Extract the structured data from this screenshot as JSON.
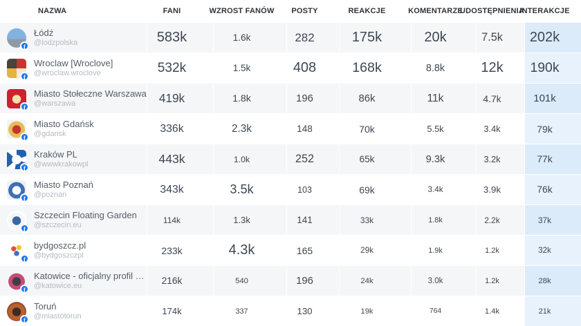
{
  "meta": {
    "accent_color": "#1877f2",
    "row_alt_color": "#f5f6f8",
    "highlight_col_color_odd": "#dcebfa",
    "highlight_col_color_even": "#e7f2fd",
    "number_text_color": "#3d4752"
  },
  "table": {
    "columns": [
      {
        "key": "nazwa",
        "label": "NAZWA"
      },
      {
        "key": "fani",
        "label": "FANI"
      },
      {
        "key": "wzrost_fanow",
        "label": "WZROST FANÓW"
      },
      {
        "key": "posty",
        "label": "POSTY"
      },
      {
        "key": "reakcje",
        "label": "REAKCJE"
      },
      {
        "key": "komentarze",
        "label": "KOMENTARZE"
      },
      {
        "key": "udostepnienia",
        "label": "UDOSTĘPNIENIA"
      },
      {
        "key": "interakcje",
        "label": "INTERAKCJE",
        "highlighted": true
      }
    ],
    "rows": [
      {
        "name": "Łódź",
        "handle": "@lodzpolska",
        "avatar": {
          "icon": "lodz-page-avatar",
          "style": "photo",
          "shape": "circle",
          "colors": [
            "#82b2e0",
            "#8f9aa3"
          ]
        },
        "cells": [
          {
            "text": "583k",
            "value": 583000
          },
          {
            "text": "1.6k",
            "value": 1600
          },
          {
            "text": "282",
            "value": 282
          },
          {
            "text": "175k",
            "value": 175000
          },
          {
            "text": "20k",
            "value": 20000
          },
          {
            "text": "7.5k",
            "value": 7500
          },
          {
            "text": "202k",
            "value": 202000
          }
        ]
      },
      {
        "name": "Wroclaw [Wroclove]",
        "handle": "@wroclaw.wroclove",
        "avatar": {
          "icon": "wroclaw-page-avatar",
          "style": "quarters",
          "shape": "square",
          "colors": [
            "#c8342e",
            "#f3ead8",
            "#e3b53b",
            "#4a423c"
          ]
        },
        "cells": [
          {
            "text": "532k",
            "value": 532000
          },
          {
            "text": "1.5k",
            "value": 1500
          },
          {
            "text": "408",
            "value": 408
          },
          {
            "text": "168k",
            "value": 168000
          },
          {
            "text": "8.8k",
            "value": 8800
          },
          {
            "text": "12k",
            "value": 12000
          },
          {
            "text": "190k",
            "value": 190000
          }
        ]
      },
      {
        "name": "Miasto Stołeczne Warszawa",
        "handle": "@warszawa",
        "avatar": {
          "icon": "warszawa-page-avatar",
          "style": "emblem",
          "shape": "square",
          "colors": [
            "#f4dfae",
            "#cd2230",
            "#cd2230"
          ]
        },
        "cells": [
          {
            "text": "419k",
            "value": 419000
          },
          {
            "text": "1.8k",
            "value": 1800
          },
          {
            "text": "196",
            "value": 196
          },
          {
            "text": "86k",
            "value": 86000
          },
          {
            "text": "11k",
            "value": 11000
          },
          {
            "text": "4.7k",
            "value": 4700
          },
          {
            "text": "101k",
            "value": 101000
          }
        ]
      },
      {
        "name": "Miasto Gdańsk",
        "handle": "@gdansk",
        "avatar": {
          "icon": "gdansk-page-avatar",
          "style": "emblem",
          "shape": "square",
          "colors": [
            "#c73430",
            "#e4bd55",
            "#f2f3f5"
          ]
        },
        "cells": [
          {
            "text": "336k",
            "value": 336000
          },
          {
            "text": "2.3k",
            "value": 2300
          },
          {
            "text": "148",
            "value": 148
          },
          {
            "text": "70k",
            "value": 70000
          },
          {
            "text": "5.5k",
            "value": 5500
          },
          {
            "text": "3.4k",
            "value": 3400
          },
          {
            "text": "79k",
            "value": 79000
          }
        ]
      },
      {
        "name": "Kraków PL",
        "handle": "@wwwkrakowpl",
        "avatar": {
          "icon": "krakow-page-avatar",
          "style": "ring",
          "shape": "square",
          "colors": [
            "#2261ad"
          ]
        },
        "cells": [
          {
            "text": "443k",
            "value": 443000
          },
          {
            "text": "1.0k",
            "value": 1000
          },
          {
            "text": "252",
            "value": 252
          },
          {
            "text": "65k",
            "value": 65000
          },
          {
            "text": "9.3k",
            "value": 9300
          },
          {
            "text": "3.2k",
            "value": 3200
          },
          {
            "text": "77k",
            "value": 77000
          }
        ]
      },
      {
        "name": "Miasto Poznań",
        "handle": "@poznan",
        "avatar": {
          "icon": "poznan-page-avatar",
          "style": "emblem",
          "shape": "square",
          "colors": [
            "#ffffff",
            "#3f6fb5",
            "#eff1f3"
          ]
        },
        "cells": [
          {
            "text": "343k",
            "value": 343000
          },
          {
            "text": "3.5k",
            "value": 3500
          },
          {
            "text": "103",
            "value": 103
          },
          {
            "text": "69k",
            "value": 69000
          },
          {
            "text": "3.4k",
            "value": 3400
          },
          {
            "text": "3.9k",
            "value": 3900
          },
          {
            "text": "76k",
            "value": 76000
          }
        ]
      },
      {
        "name": "Szczecin Floating Garden",
        "handle": "@szczecin.eu",
        "avatar": {
          "icon": "szczecin-page-avatar",
          "style": "emblem",
          "shape": "circle",
          "colors": [
            "#3c67a5",
            "#f4f6f8",
            "#ffffff"
          ]
        },
        "cells": [
          {
            "text": "114k",
            "value": 114000
          },
          {
            "text": "1.3k",
            "value": 1300
          },
          {
            "text": "141",
            "value": 141
          },
          {
            "text": "33k",
            "value": 33000
          },
          {
            "text": "1.8k",
            "value": 1800
          },
          {
            "text": "2.2k",
            "value": 2200
          },
          {
            "text": "37k",
            "value": 37000
          }
        ]
      },
      {
        "name": "bydgoszcz.pl",
        "handle": "@bydgoszczpl",
        "avatar": {
          "icon": "bydgoszcz-page-avatar",
          "style": "dots",
          "shape": "circle",
          "colors": [
            "#e84b3c",
            "#f3c53b",
            "#3e73c0"
          ]
        },
        "cells": [
          {
            "text": "233k",
            "value": 233000
          },
          {
            "text": "4.3k",
            "value": 4300
          },
          {
            "text": "165",
            "value": 165
          },
          {
            "text": "29k",
            "value": 29000
          },
          {
            "text": "1.9k",
            "value": 1900
          },
          {
            "text": "1.2k",
            "value": 1200
          },
          {
            "text": "32k",
            "value": 32000
          }
        ]
      },
      {
        "name": "Katowice - oficjalny profil miasta",
        "handle": "@katowice.eu",
        "avatar": {
          "icon": "katowice-page-avatar",
          "style": "emblem",
          "shape": "circle",
          "colors": [
            "#3f3f46",
            "#c94b77",
            "#f6f7f8"
          ]
        },
        "cells": [
          {
            "text": "216k",
            "value": 216000
          },
          {
            "text": "540",
            "value": 540
          },
          {
            "text": "196",
            "value": 196
          },
          {
            "text": "24k",
            "value": 24000
          },
          {
            "text": "3.0k",
            "value": 3000
          },
          {
            "text": "1.2k",
            "value": 1200
          },
          {
            "text": "28k",
            "value": 28000
          }
        ]
      },
      {
        "name": "Toruń",
        "handle": "@miastotorun",
        "avatar": {
          "icon": "torun-page-avatar",
          "style": "emblem",
          "shape": "circle",
          "colors": [
            "#3f2b22",
            "#b8622f",
            "#96502f"
          ]
        },
        "cells": [
          {
            "text": "174k",
            "value": 174000
          },
          {
            "text": "337",
            "value": 337
          },
          {
            "text": "130",
            "value": 130
          },
          {
            "text": "19k",
            "value": 19000
          },
          {
            "text": "764",
            "value": 764
          },
          {
            "text": "1.4k",
            "value": 1400
          },
          {
            "text": "21k",
            "value": 21000
          }
        ]
      }
    ]
  }
}
